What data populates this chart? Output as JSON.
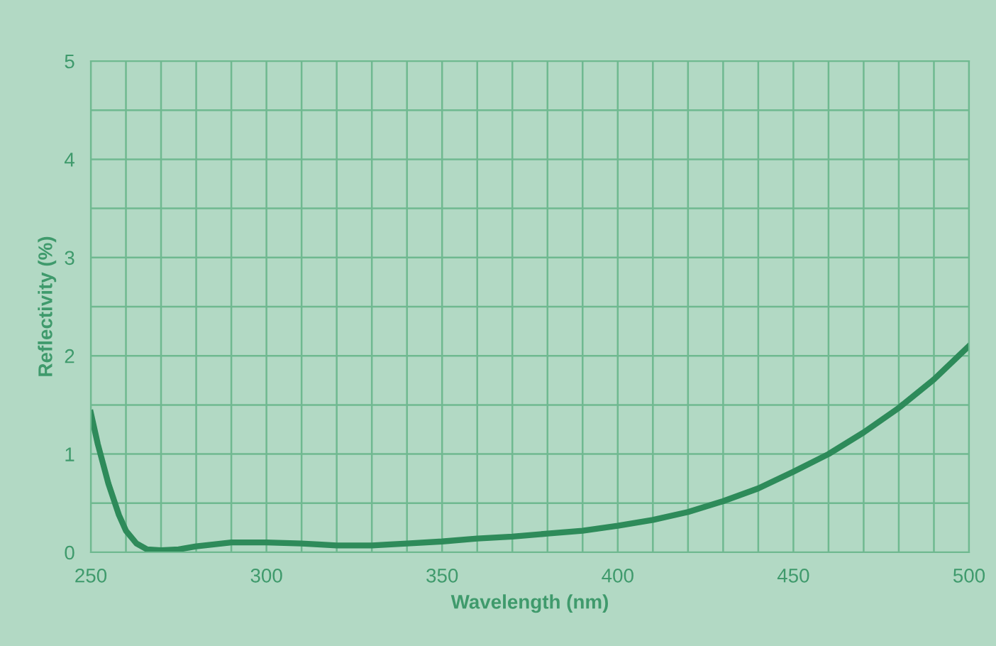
{
  "chart_data": {
    "type": "line",
    "xlabel": "Wavelength (nm)",
    "ylabel": "Reflectivity (%)",
    "x": [
      250,
      252,
      255,
      258,
      260,
      263,
      266,
      270,
      275,
      280,
      290,
      300,
      310,
      320,
      330,
      340,
      350,
      360,
      370,
      380,
      390,
      400,
      410,
      420,
      430,
      440,
      450,
      460,
      470,
      480,
      490,
      500
    ],
    "series": [
      {
        "color": "#2e8b5a",
        "values": [
          1.42,
          1.1,
          0.7,
          0.38,
          0.22,
          0.09,
          0.03,
          0.02,
          0.03,
          0.06,
          0.1,
          0.1,
          0.09,
          0.07,
          0.07,
          0.09,
          0.11,
          0.14,
          0.16,
          0.19,
          0.22,
          0.27,
          0.33,
          0.41,
          0.52,
          0.65,
          0.82,
          1.0,
          1.22,
          1.47,
          1.76,
          2.1
        ]
      }
    ],
    "xlim": [
      250,
      500
    ],
    "ylim": [
      0,
      5
    ],
    "xticks": [
      250,
      {
        "value": 260,
        "label": null
      },
      {
        "value": 270,
        "label": null
      },
      {
        "value": 280,
        "label": null
      },
      {
        "value": 290,
        "label": null
      },
      300,
      {
        "value": 310,
        "label": null
      },
      {
        "value": 320,
        "label": null
      },
      {
        "value": 330,
        "label": null
      },
      {
        "value": 340,
        "label": null
      },
      350,
      {
        "value": 360,
        "label": null
      },
      {
        "value": 370,
        "label": null
      },
      {
        "value": 380,
        "label": null
      },
      {
        "value": 390,
        "label": null
      },
      400,
      {
        "value": 410,
        "label": null
      },
      {
        "value": 420,
        "label": null
      },
      {
        "value": 430,
        "label": null
      },
      {
        "value": 440,
        "label": null
      },
      450,
      {
        "value": 460,
        "label": null
      },
      {
        "value": 470,
        "label": null
      },
      {
        "value": 480,
        "label": null
      },
      {
        "value": 490,
        "label": null
      },
      500
    ],
    "yticks": [
      0,
      {
        "value": 0.5,
        "label": null
      },
      1,
      {
        "value": 1.5,
        "label": null
      },
      2,
      {
        "value": 2.5,
        "label": null
      },
      3,
      {
        "value": 3.5,
        "label": null
      },
      4,
      {
        "value": 4.5,
        "label": null
      },
      5
    ],
    "grid": true,
    "marker": "none",
    "line_style": "solid",
    "legend": false
  }
}
